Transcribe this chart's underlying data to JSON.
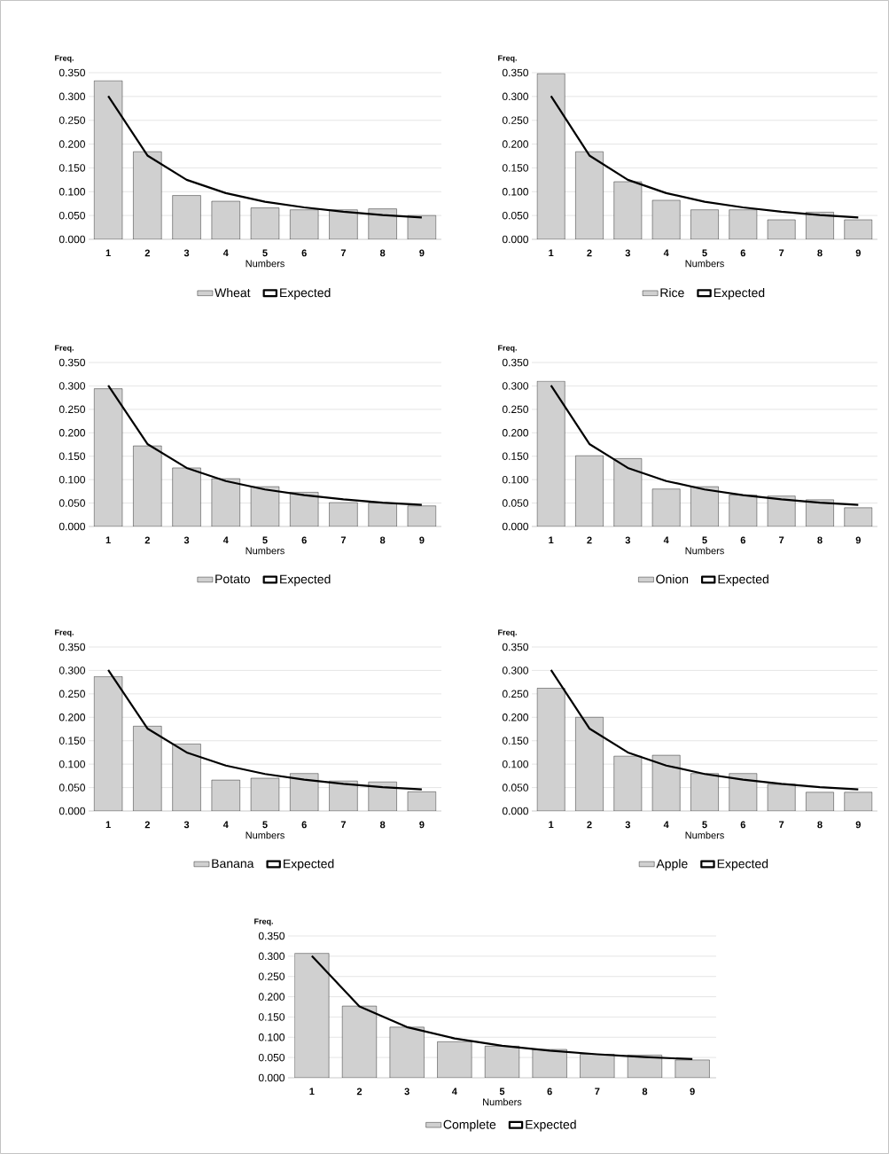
{
  "chart_data": [
    {
      "type": "bar",
      "ylabel": "Freq.",
      "xlabel": "Numbers",
      "categories": [
        "1",
        "2",
        "3",
        "4",
        "5",
        "6",
        "7",
        "8",
        "9"
      ],
      "ylim": [
        0,
        0.35
      ],
      "yticks": [
        {
          "value": 0,
          "label": "0.000"
        },
        {
          "value": 0.05,
          "label": "0.050"
        },
        {
          "value": 0.1,
          "label": "0.100"
        },
        {
          "value": 0.15,
          "label": "0.150"
        },
        {
          "value": 0.2,
          "label": "0.200"
        },
        {
          "value": 0.25,
          "label": "0.250"
        },
        {
          "value": 0.3,
          "label": "0.300"
        },
        {
          "value": 0.35,
          "label": "0.350"
        }
      ],
      "grid": "y",
      "legend": "bottom",
      "series": [
        {
          "name": "Wheat",
          "color": "#d0d0d0",
          "values": [
            0.333,
            0.184,
            0.092,
            0.08,
            0.066,
            0.062,
            0.062,
            0.064,
            0.05
          ]
        },
        {
          "name": "Expected",
          "type": "line",
          "color": "#000000",
          "values": [
            0.301,
            0.176,
            0.125,
            0.097,
            0.079,
            0.067,
            0.058,
            0.051,
            0.046
          ]
        }
      ]
    },
    {
      "type": "bar",
      "ylabel": "Freq.",
      "xlabel": "Numbers",
      "categories": [
        "1",
        "2",
        "3",
        "4",
        "5",
        "6",
        "7",
        "8",
        "9"
      ],
      "ylim": [
        0,
        0.35
      ],
      "yticks": [
        {
          "value": 0,
          "label": "0.000"
        },
        {
          "value": 0.05,
          "label": "0.050"
        },
        {
          "value": 0.1,
          "label": "0.100"
        },
        {
          "value": 0.15,
          "label": "0.150"
        },
        {
          "value": 0.2,
          "label": "0.200"
        },
        {
          "value": 0.25,
          "label": "0.250"
        },
        {
          "value": 0.3,
          "label": "0.300"
        },
        {
          "value": 0.35,
          "label": "0.350"
        }
      ],
      "grid": "y",
      "legend": "bottom",
      "series": [
        {
          "name": "Rice",
          "color": "#d0d0d0",
          "values": [
            0.348,
            0.184,
            0.121,
            0.082,
            0.062,
            0.062,
            0.041,
            0.057,
            0.041
          ]
        },
        {
          "name": "Expected",
          "type": "line",
          "color": "#000000",
          "values": [
            0.301,
            0.176,
            0.125,
            0.097,
            0.079,
            0.067,
            0.058,
            0.051,
            0.046
          ]
        }
      ]
    },
    {
      "type": "bar",
      "ylabel": "Freq.",
      "xlabel": "Numbers",
      "categories": [
        "1",
        "2",
        "3",
        "4",
        "5",
        "6",
        "7",
        "8",
        "9"
      ],
      "ylim": [
        0,
        0.35
      ],
      "yticks": [
        {
          "value": 0,
          "label": "0.000"
        },
        {
          "value": 0.05,
          "label": "0.050"
        },
        {
          "value": 0.1,
          "label": "0.100"
        },
        {
          "value": 0.15,
          "label": "0.150"
        },
        {
          "value": 0.2,
          "label": "0.200"
        },
        {
          "value": 0.25,
          "label": "0.250"
        },
        {
          "value": 0.3,
          "label": "0.300"
        },
        {
          "value": 0.35,
          "label": "0.350"
        }
      ],
      "grid": "y",
      "legend": "bottom",
      "series": [
        {
          "name": "Potato",
          "color": "#d0d0d0",
          "values": [
            0.294,
            0.172,
            0.125,
            0.102,
            0.085,
            0.073,
            0.051,
            0.05,
            0.044
          ]
        },
        {
          "name": "Expected",
          "type": "line",
          "color": "#000000",
          "values": [
            0.301,
            0.176,
            0.125,
            0.097,
            0.079,
            0.067,
            0.058,
            0.051,
            0.046
          ]
        }
      ]
    },
    {
      "type": "bar",
      "ylabel": "Freq.",
      "xlabel": "Numbers",
      "categories": [
        "1",
        "2",
        "3",
        "4",
        "5",
        "6",
        "7",
        "8",
        "9"
      ],
      "ylim": [
        0,
        0.35
      ],
      "yticks": [
        {
          "value": 0,
          "label": "0.000"
        },
        {
          "value": 0.05,
          "label": "0.050"
        },
        {
          "value": 0.1,
          "label": "0.100"
        },
        {
          "value": 0.15,
          "label": "0.150"
        },
        {
          "value": 0.2,
          "label": "0.200"
        },
        {
          "value": 0.25,
          "label": "0.250"
        },
        {
          "value": 0.3,
          "label": "0.300"
        },
        {
          "value": 0.35,
          "label": "0.350"
        }
      ],
      "grid": "y",
      "legend": "bottom",
      "series": [
        {
          "name": "Onion",
          "color": "#d0d0d0",
          "values": [
            0.31,
            0.151,
            0.145,
            0.08,
            0.085,
            0.067,
            0.065,
            0.057,
            0.04
          ]
        },
        {
          "name": "Expected",
          "type": "line",
          "color": "#000000",
          "values": [
            0.301,
            0.176,
            0.125,
            0.097,
            0.079,
            0.067,
            0.058,
            0.051,
            0.046
          ]
        }
      ]
    },
    {
      "type": "bar",
      "ylabel": "Freq.",
      "xlabel": "Numbers",
      "categories": [
        "1",
        "2",
        "3",
        "4",
        "5",
        "6",
        "7",
        "8",
        "9"
      ],
      "ylim": [
        0,
        0.35
      ],
      "yticks": [
        {
          "value": 0,
          "label": "0.000"
        },
        {
          "value": 0.05,
          "label": "0.050"
        },
        {
          "value": 0.1,
          "label": "0.100"
        },
        {
          "value": 0.15,
          "label": "0.150"
        },
        {
          "value": 0.2,
          "label": "0.200"
        },
        {
          "value": 0.25,
          "label": "0.250"
        },
        {
          "value": 0.3,
          "label": "0.300"
        },
        {
          "value": 0.35,
          "label": "0.350"
        }
      ],
      "grid": "y",
      "legend": "bottom",
      "series": [
        {
          "name": "Banana",
          "color": "#d0d0d0",
          "values": [
            0.287,
            0.181,
            0.143,
            0.066,
            0.07,
            0.08,
            0.064,
            0.062,
            0.041
          ]
        },
        {
          "name": "Expected",
          "type": "line",
          "color": "#000000",
          "values": [
            0.301,
            0.176,
            0.125,
            0.097,
            0.079,
            0.067,
            0.058,
            0.051,
            0.046
          ]
        }
      ]
    },
    {
      "type": "bar",
      "ylabel": "Freq.",
      "xlabel": "Numbers",
      "categories": [
        "1",
        "2",
        "3",
        "4",
        "5",
        "6",
        "7",
        "8",
        "9"
      ],
      "ylim": [
        0,
        0.35
      ],
      "yticks": [
        {
          "value": 0,
          "label": "0.000"
        },
        {
          "value": 0.05,
          "label": "0.050"
        },
        {
          "value": 0.1,
          "label": "0.100"
        },
        {
          "value": 0.15,
          "label": "0.150"
        },
        {
          "value": 0.2,
          "label": "0.200"
        },
        {
          "value": 0.25,
          "label": "0.250"
        },
        {
          "value": 0.3,
          "label": "0.300"
        },
        {
          "value": 0.35,
          "label": "0.350"
        }
      ],
      "grid": "y",
      "legend": "bottom",
      "series": [
        {
          "name": "Apple",
          "color": "#d0d0d0",
          "values": [
            0.262,
            0.2,
            0.117,
            0.119,
            0.08,
            0.08,
            0.057,
            0.04,
            0.04
          ]
        },
        {
          "name": "Expected",
          "type": "line",
          "color": "#000000",
          "values": [
            0.301,
            0.176,
            0.125,
            0.097,
            0.079,
            0.067,
            0.058,
            0.051,
            0.046
          ]
        }
      ]
    },
    {
      "type": "bar",
      "ylabel": "Freq.",
      "xlabel": "Numbers",
      "categories": [
        "1",
        "2",
        "3",
        "4",
        "5",
        "6",
        "7",
        "8",
        "9"
      ],
      "ylim": [
        0,
        0.35
      ],
      "yticks": [
        {
          "value": 0,
          "label": "0.000"
        },
        {
          "value": 0.05,
          "label": "0.050"
        },
        {
          "value": 0.1,
          "label": "0.100"
        },
        {
          "value": 0.15,
          "label": "0.150"
        },
        {
          "value": 0.2,
          "label": "0.200"
        },
        {
          "value": 0.25,
          "label": "0.250"
        },
        {
          "value": 0.3,
          "label": "0.300"
        },
        {
          "value": 0.35,
          "label": "0.350"
        }
      ],
      "grid": "y",
      "legend": "bottom",
      "series": [
        {
          "name": "Complete",
          "color": "#d0d0d0",
          "values": [
            0.307,
            0.177,
            0.125,
            0.089,
            0.078,
            0.07,
            0.058,
            0.056,
            0.044
          ]
        },
        {
          "name": "Expected",
          "type": "line",
          "color": "#000000",
          "values": [
            0.301,
            0.176,
            0.125,
            0.097,
            0.079,
            0.067,
            0.058,
            0.051,
            0.046
          ]
        }
      ]
    }
  ]
}
